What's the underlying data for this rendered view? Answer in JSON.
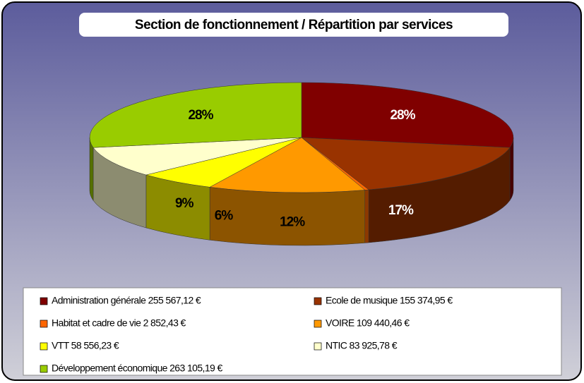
{
  "chart_data": {
    "type": "pie",
    "title": "Section de fonctionnement / Répartition par services",
    "categories": [
      "Administration générale 255 567,12 €",
      "Ecole de musique 155 374,95 €",
      "Habitat et cadre de vie 2 852,43 €",
      "VOIRE 109 440,46 €",
      "VTT 58 556,23 €",
      "NTIC 83 925,78 €",
      "Développement économique 263 105,19 €"
    ],
    "values": [
      28,
      17,
      0.3,
      12,
      6,
      9,
      28
    ],
    "value_labels": [
      "28%",
      "17%",
      null,
      "12%",
      "6%",
      "9%",
      "28%"
    ],
    "colors": [
      "#800000",
      "#993300",
      "#ff6600",
      "#ff9900",
      "#ffff00",
      "#ffffcc",
      "#99cc00"
    ]
  }
}
